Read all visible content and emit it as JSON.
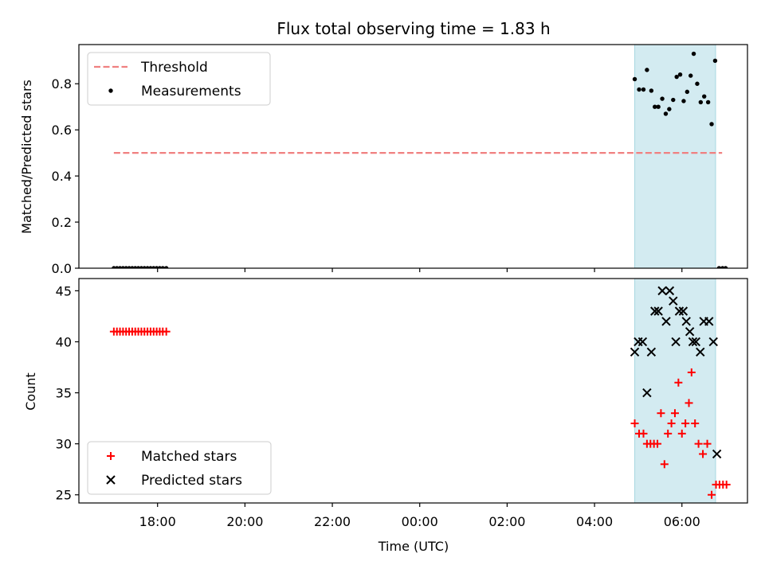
{
  "chart_data": {
    "type": "scatter",
    "title": "Flux total observing time = 1.83 h",
    "xlabel": "Time (UTC)",
    "x_tick_labels": [
      "18:00",
      "20:00",
      "22:00",
      "00:00",
      "02:00",
      "04:00",
      "06:00"
    ],
    "x_tick_hours": [
      18,
      20,
      22,
      24,
      26,
      28,
      30
    ],
    "xlim": [
      16.2,
      31.5
    ],
    "shaded_span": {
      "from": 28.92,
      "to": 30.77,
      "color": "#d3ebf1"
    },
    "top": {
      "ylabel": "Matched/Predicted stars",
      "ylim": [
        0,
        0.97
      ],
      "y_ticks": [
        0.0,
        0.2,
        0.4,
        0.6,
        0.8
      ],
      "y_tick_labels": [
        "0.0",
        "0.2",
        "0.4",
        "0.6",
        "0.8"
      ],
      "legend": [
        "Threshold",
        "Measurements"
      ],
      "threshold": {
        "y": 0.5,
        "x_from": 17.0,
        "x_to": 30.92,
        "color": "#f08080"
      },
      "measurements": [
        [
          17.0,
          0
        ],
        [
          17.07,
          0
        ],
        [
          17.14,
          0
        ],
        [
          17.21,
          0
        ],
        [
          17.28,
          0
        ],
        [
          17.35,
          0
        ],
        [
          17.42,
          0
        ],
        [
          17.49,
          0
        ],
        [
          17.56,
          0
        ],
        [
          17.63,
          0
        ],
        [
          17.7,
          0
        ],
        [
          17.77,
          0
        ],
        [
          17.84,
          0
        ],
        [
          17.91,
          0
        ],
        [
          17.98,
          0
        ],
        [
          18.05,
          0
        ],
        [
          18.12,
          0
        ],
        [
          18.2,
          0
        ],
        [
          28.92,
          0.82
        ],
        [
          29.02,
          0.775
        ],
        [
          29.12,
          0.775
        ],
        [
          29.2,
          0.86
        ],
        [
          29.3,
          0.77
        ],
        [
          29.38,
          0.7
        ],
        [
          29.46,
          0.7
        ],
        [
          29.55,
          0.735
        ],
        [
          29.63,
          0.67
        ],
        [
          29.71,
          0.69
        ],
        [
          29.8,
          0.73
        ],
        [
          29.88,
          0.83
        ],
        [
          29.96,
          0.84
        ],
        [
          30.04,
          0.725
        ],
        [
          30.12,
          0.765
        ],
        [
          30.2,
          0.835
        ],
        [
          30.27,
          0.93
        ],
        [
          30.35,
          0.8
        ],
        [
          30.43,
          0.72
        ],
        [
          30.51,
          0.745
        ],
        [
          30.6,
          0.72
        ],
        [
          30.68,
          0.625
        ],
        [
          30.76,
          0.9
        ],
        [
          30.85,
          0
        ],
        [
          30.93,
          0
        ],
        [
          31.0,
          0
        ]
      ]
    },
    "bottom": {
      "ylabel": "Count",
      "ylim": [
        24.2,
        46.2
      ],
      "y_ticks": [
        25,
        30,
        35,
        40,
        45
      ],
      "y_tick_labels": [
        "25",
        "30",
        "35",
        "40",
        "45"
      ],
      "legend": [
        "Matched stars",
        "Predicted stars"
      ],
      "matched_color": "#ff0000",
      "predicted_color": "#000000",
      "matched": [
        [
          17.0,
          41
        ],
        [
          17.07,
          41
        ],
        [
          17.14,
          41
        ],
        [
          17.21,
          41
        ],
        [
          17.28,
          41
        ],
        [
          17.35,
          41
        ],
        [
          17.42,
          41
        ],
        [
          17.49,
          41
        ],
        [
          17.56,
          41
        ],
        [
          17.63,
          41
        ],
        [
          17.7,
          41
        ],
        [
          17.77,
          41
        ],
        [
          17.84,
          41
        ],
        [
          17.91,
          41
        ],
        [
          17.98,
          41
        ],
        [
          18.05,
          41
        ],
        [
          18.12,
          41
        ],
        [
          18.2,
          41
        ],
        [
          28.92,
          32
        ],
        [
          29.02,
          31
        ],
        [
          29.12,
          31
        ],
        [
          29.2,
          30
        ],
        [
          29.28,
          30
        ],
        [
          29.36,
          30
        ],
        [
          29.44,
          30
        ],
        [
          29.52,
          33
        ],
        [
          29.6,
          28
        ],
        [
          29.68,
          31
        ],
        [
          29.76,
          32
        ],
        [
          29.84,
          33
        ],
        [
          29.92,
          36
        ],
        [
          30.0,
          31
        ],
        [
          30.08,
          32
        ],
        [
          30.16,
          34
        ],
        [
          30.22,
          37
        ],
        [
          30.3,
          32
        ],
        [
          30.38,
          30
        ],
        [
          30.48,
          29
        ],
        [
          30.58,
          30
        ],
        [
          30.68,
          25
        ],
        [
          30.78,
          26
        ],
        [
          30.86,
          26
        ],
        [
          30.94,
          26
        ],
        [
          31.02,
          26
        ]
      ],
      "predicted": [
        [
          28.92,
          39
        ],
        [
          29.0,
          40
        ],
        [
          29.1,
          40
        ],
        [
          29.2,
          35
        ],
        [
          29.3,
          39
        ],
        [
          29.38,
          43
        ],
        [
          29.46,
          43
        ],
        [
          29.55,
          45
        ],
        [
          29.64,
          42
        ],
        [
          29.72,
          45
        ],
        [
          29.8,
          44
        ],
        [
          29.86,
          40
        ],
        [
          29.94,
          43
        ],
        [
          30.03,
          43
        ],
        [
          30.1,
          42
        ],
        [
          30.18,
          41
        ],
        [
          30.25,
          40
        ],
        [
          30.32,
          40
        ],
        [
          30.42,
          39
        ],
        [
          30.5,
          42
        ],
        [
          30.62,
          42
        ],
        [
          30.72,
          40
        ],
        [
          30.8,
          29
        ]
      ]
    }
  }
}
